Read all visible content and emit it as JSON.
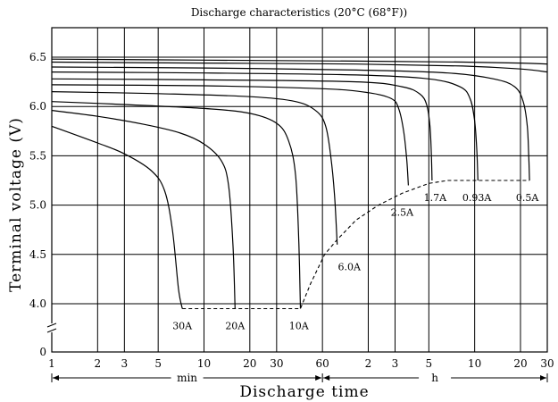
{
  "chart_data": {
    "type": "line",
    "title": "Discharge characteristics (20°C (68°F))",
    "xlabel": "Discharge time",
    "ylabel": "Terminal voltage (V)",
    "x_scale": "log",
    "x_unit_labels": {
      "minutes": "min",
      "hours": "h"
    },
    "x_ticks_minutes": [
      1,
      2,
      3,
      5,
      10,
      20,
      30,
      60,
      120,
      180,
      300,
      600,
      1200,
      1800
    ],
    "x_tick_labels": [
      "1",
      "2",
      "3",
      "5",
      "10",
      "20",
      "30",
      "60",
      "2",
      "3",
      "5",
      "10",
      "20",
      "30"
    ],
    "y_ticks": [
      0,
      4.0,
      4.5,
      5.0,
      5.5,
      6.0,
      6.5
    ],
    "y_tick_labels": [
      "0",
      "4.0",
      "4.5",
      "5.0",
      "5.5",
      "6.0",
      "6.5"
    ],
    "y_axis_break": true,
    "grid": true,
    "series": [
      {
        "name": "30A",
        "points": [
          [
            1,
            5.8
          ],
          [
            2,
            5.63
          ],
          [
            3,
            5.52
          ],
          [
            4.5,
            5.35
          ],
          [
            5.5,
            5.15
          ],
          [
            6.2,
            4.75
          ],
          [
            6.8,
            4.15
          ],
          [
            7.2,
            3.95
          ]
        ]
      },
      {
        "name": "20A",
        "points": [
          [
            1,
            5.96
          ],
          [
            2,
            5.9
          ],
          [
            4,
            5.82
          ],
          [
            7,
            5.73
          ],
          [
            10,
            5.62
          ],
          [
            13,
            5.45
          ],
          [
            14.5,
            5.2
          ],
          [
            15.5,
            4.6
          ],
          [
            16,
            3.95
          ]
        ]
      },
      {
        "name": "10A",
        "points": [
          [
            1,
            6.05
          ],
          [
            3,
            6.02
          ],
          [
            10,
            5.98
          ],
          [
            20,
            5.93
          ],
          [
            30,
            5.83
          ],
          [
            36,
            5.65
          ],
          [
            40,
            5.3
          ],
          [
            42,
            4.6
          ],
          [
            43,
            3.95
          ]
        ]
      },
      {
        "name": "6.0A",
        "points": [
          [
            1,
            6.15
          ],
          [
            5,
            6.13
          ],
          [
            20,
            6.1
          ],
          [
            40,
            6.05
          ],
          [
            55,
            5.95
          ],
          [
            63,
            5.8
          ],
          [
            68,
            5.5
          ],
          [
            72,
            5.1
          ],
          [
            75,
            4.6
          ]
        ]
      },
      {
        "name": "2.5A",
        "points": [
          [
            1,
            6.22
          ],
          [
            10,
            6.21
          ],
          [
            60,
            6.18
          ],
          [
            120,
            6.14
          ],
          [
            170,
            6.08
          ],
          [
            190,
            5.98
          ],
          [
            205,
            5.75
          ],
          [
            215,
            5.45
          ],
          [
            220,
            5.2
          ]
        ]
      },
      {
        "name": "1.7A",
        "points": [
          [
            1,
            6.28
          ],
          [
            10,
            6.27
          ],
          [
            100,
            6.25
          ],
          [
            200,
            6.2
          ],
          [
            260,
            6.13
          ],
          [
            290,
            6.02
          ],
          [
            305,
            5.8
          ],
          [
            312,
            5.5
          ],
          [
            315,
            5.25
          ]
        ]
      },
      {
        "name": "0.93A",
        "points": [
          [
            1,
            6.35
          ],
          [
            10,
            6.34
          ],
          [
            100,
            6.32
          ],
          [
            300,
            6.28
          ],
          [
            480,
            6.2
          ],
          [
            560,
            6.08
          ],
          [
            600,
            5.85
          ],
          [
            620,
            5.55
          ],
          [
            630,
            5.25
          ]
        ]
      },
      {
        "name": "0.5A",
        "points": [
          [
            1,
            6.4
          ],
          [
            10,
            6.39
          ],
          [
            100,
            6.37
          ],
          [
            400,
            6.34
          ],
          [
            800,
            6.28
          ],
          [
            1100,
            6.2
          ],
          [
            1250,
            6.05
          ],
          [
            1330,
            5.8
          ],
          [
            1360,
            5.5
          ],
          [
            1375,
            5.25
          ]
        ]
      },
      {
        "name": "",
        "points": [
          [
            1,
            6.45
          ],
          [
            10,
            6.44
          ],
          [
            100,
            6.43
          ],
          [
            500,
            6.41
          ],
          [
            1200,
            6.38
          ],
          [
            1800,
            6.35
          ]
        ]
      },
      {
        "name": "",
        "points": [
          [
            1,
            6.48
          ],
          [
            10,
            6.47
          ],
          [
            100,
            6.46
          ],
          [
            500,
            6.45
          ],
          [
            1200,
            6.44
          ],
          [
            1800,
            6.43
          ]
        ]
      }
    ],
    "cutoff_line": {
      "points": [
        [
          7.2,
          3.95
        ],
        [
          43,
          3.95
        ],
        [
          50,
          4.2
        ],
        [
          62,
          4.5
        ],
        [
          75,
          4.65
        ],
        [
          100,
          4.85
        ],
        [
          140,
          5.0
        ],
        [
          200,
          5.12
        ],
        [
          300,
          5.22
        ],
        [
          400,
          5.25
        ],
        [
          1375,
          5.25
        ]
      ]
    },
    "series_labels": [
      {
        "text": "30A",
        "at": [
          7.2,
          3.85
        ]
      },
      {
        "text": "20A",
        "at": [
          16,
          3.85
        ]
      },
      {
        "text": "10A",
        "at": [
          42,
          3.85
        ]
      },
      {
        "text": "6.0A",
        "at": [
          90,
          4.45
        ]
      },
      {
        "text": "2.5A",
        "at": [
          200,
          5.0
        ]
      },
      {
        "text": "1.7A",
        "at": [
          330,
          5.15
        ]
      },
      {
        "text": "0.93A",
        "at": [
          620,
          5.15
        ]
      },
      {
        "text": "0.5A",
        "at": [
          1330,
          5.15
        ]
      }
    ]
  }
}
